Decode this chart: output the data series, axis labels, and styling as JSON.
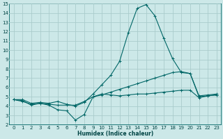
{
  "xlabel": "Humidex (Indice chaleur)",
  "xlim": [
    -0.5,
    23.5
  ],
  "ylim": [
    2,
    15
  ],
  "xticks": [
    0,
    1,
    2,
    3,
    4,
    5,
    6,
    7,
    8,
    9,
    10,
    11,
    12,
    13,
    14,
    15,
    16,
    17,
    18,
    19,
    20,
    21,
    22,
    23
  ],
  "yticks": [
    2,
    3,
    4,
    5,
    6,
    7,
    8,
    9,
    10,
    11,
    12,
    13,
    14,
    15
  ],
  "background_color": "#cce8e8",
  "grid_color": "#aacccc",
  "line_color": "#006666",
  "tick_fontsize": 5.0,
  "xlabel_fontsize": 5.5,
  "series": [
    [
      4.7,
      4.6,
      4.1,
      4.3,
      4.1,
      3.6,
      3.5,
      2.5,
      3.1,
      5.0,
      5.3,
      5.2,
      5.1,
      5.2,
      5.3,
      5.3,
      5.4,
      5.5,
      5.6,
      5.7,
      5.7,
      4.9,
      5.1,
      5.2
    ],
    [
      4.7,
      4.5,
      4.2,
      4.3,
      4.2,
      4.1,
      4.1,
      4.1,
      4.5,
      5.0,
      5.2,
      5.5,
      5.8,
      6.1,
      6.4,
      6.7,
      7.0,
      7.3,
      7.6,
      7.7,
      7.5,
      5.0,
      5.1,
      5.2
    ],
    [
      4.7,
      4.7,
      4.3,
      4.4,
      4.3,
      4.5,
      4.2,
      4.0,
      4.4,
      5.3,
      6.3,
      7.3,
      8.8,
      11.9,
      14.5,
      14.9,
      13.7,
      11.3,
      9.1,
      7.6,
      7.5,
      5.1,
      5.2,
      5.3
    ]
  ]
}
